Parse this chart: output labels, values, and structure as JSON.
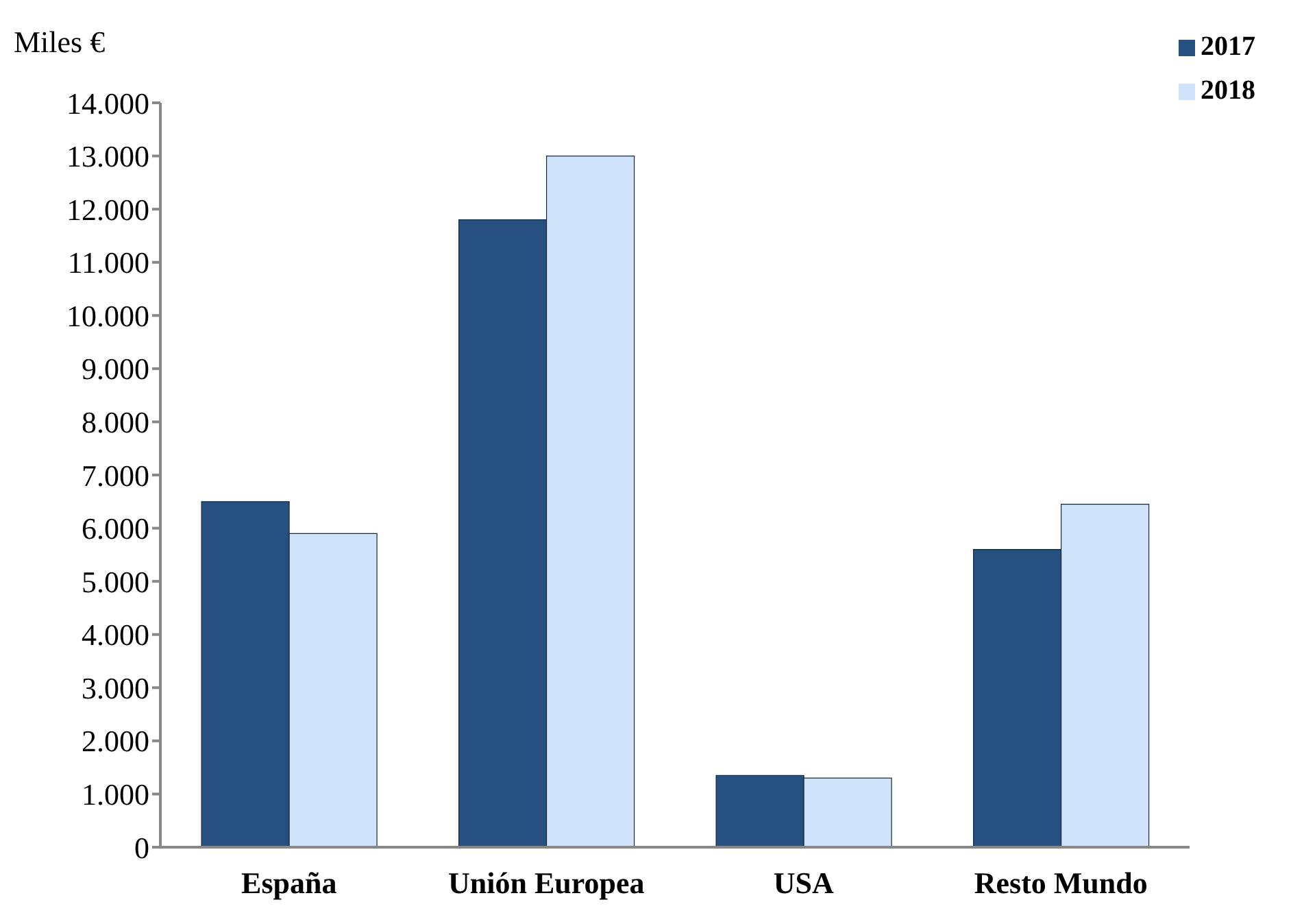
{
  "chart_data": {
    "type": "bar",
    "ylabel": "Miles €",
    "categories": [
      "España",
      "Unión Europea",
      "USA",
      "Resto Mundo"
    ],
    "series": [
      {
        "name": "2017",
        "color": "#25507f",
        "values": [
          6500,
          11800,
          1350,
          5600
        ]
      },
      {
        "name": "2018",
        "color": "#cfe3fa",
        "values": [
          5900,
          13000,
          1300,
          6450
        ]
      }
    ],
    "ylim": [
      0,
      14000
    ],
    "yticks": [
      {
        "value": 0,
        "label": "0"
      },
      {
        "value": 1000,
        "label": "1.000"
      },
      {
        "value": 2000,
        "label": "2.000"
      },
      {
        "value": 3000,
        "label": "3.000"
      },
      {
        "value": 4000,
        "label": "4.000"
      },
      {
        "value": 5000,
        "label": "5.000"
      },
      {
        "value": 6000,
        "label": "6.000"
      },
      {
        "value": 7000,
        "label": "7.000"
      },
      {
        "value": 8000,
        "label": "8.000"
      },
      {
        "value": 9000,
        "label": "9.000"
      },
      {
        "value": 10000,
        "label": "10.000"
      },
      {
        "value": 11000,
        "label": "11.000"
      },
      {
        "value": 12000,
        "label": "12.000"
      },
      {
        "value": 13000,
        "label": "13.000"
      },
      {
        "value": 14000,
        "label": "14.000"
      }
    ],
    "grid": false,
    "legend": "top right"
  }
}
